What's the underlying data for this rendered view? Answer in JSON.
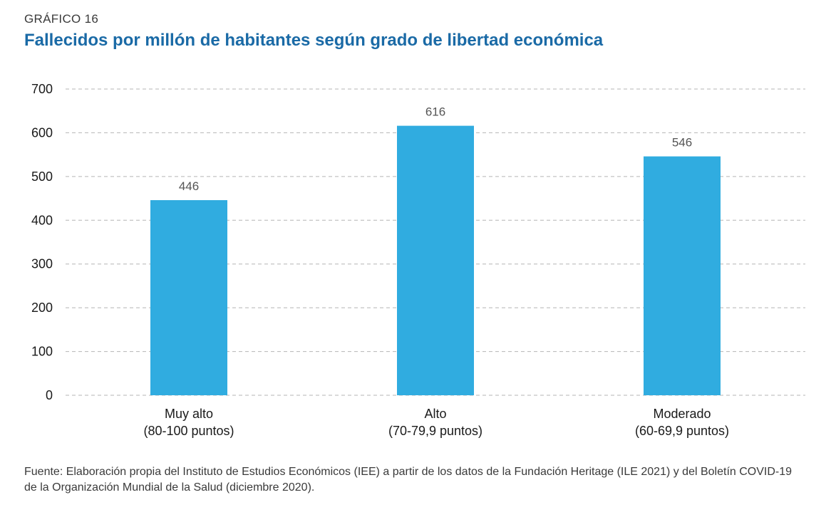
{
  "header": {
    "eyebrow": "GRÁFICO 16",
    "title": "Fallecidos por millón de habitantes según grado de libertad económica"
  },
  "chart_data": {
    "type": "bar",
    "categories": [
      [
        "Muy alto",
        "(80-100 puntos)"
      ],
      [
        "Alto",
        "(70-79,9 puntos)"
      ],
      [
        "Moderado",
        "(60-69,9 puntos)"
      ]
    ],
    "values": [
      446,
      616,
      546
    ],
    "title": "Fallecidos por millón de habitantes según grado de libertad económica",
    "xlabel": "",
    "ylabel": "",
    "ylim": [
      0,
      700
    ],
    "yticks": [
      0,
      100,
      200,
      300,
      400,
      500,
      600,
      700
    ],
    "grid": true,
    "legend": "none",
    "colors": {
      "bar": "#30ace0",
      "grid": "#b5b5b5",
      "title": "#1a6aa6"
    }
  },
  "footer": {
    "source": "Fuente: Elaboración propia del Instituto de Estudios Económicos (IEE) a partir de los datos de la Fundación Heritage (ILE 2021) y del Boletín COVID-19 de la Organización Mundial de la Salud (diciembre 2020)."
  }
}
